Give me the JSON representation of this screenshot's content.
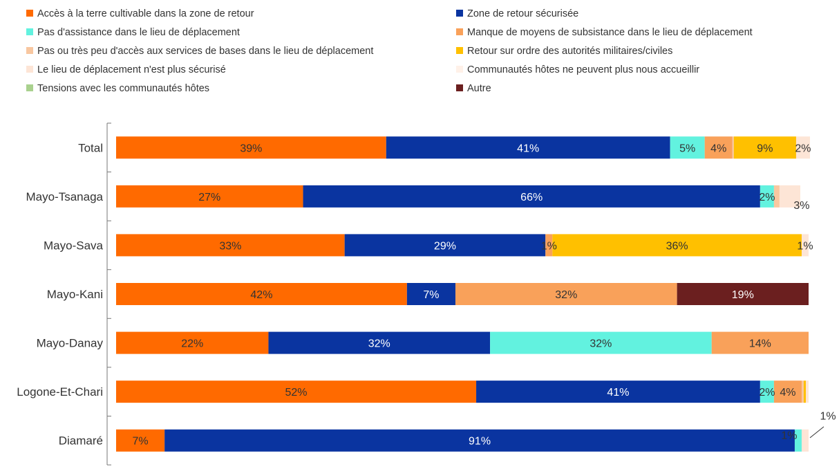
{
  "chart_data": {
    "type": "bar",
    "orientation": "horizontal",
    "stacked": true,
    "xlim": [
      0,
      100
    ],
    "grid": false,
    "legend_placement": "top",
    "categories": [
      "Total",
      "Mayo-Tsanaga",
      "Mayo-Sava",
      "Mayo-Kani",
      "Mayo-Danay",
      "Logone-Et-Chari",
      "Diamaré"
    ],
    "series": [
      {
        "name": "Accès à la terre cultivable dans la zone de retour",
        "color": "#FF6A00",
        "values": [
          39,
          27,
          33,
          42,
          22,
          52,
          7
        ],
        "labels": [
          "39%",
          "27%",
          "33%",
          "42%",
          "22%",
          "52%",
          "7%"
        ]
      },
      {
        "name": "Zone de retour sécurisée",
        "color": "#0A34A0",
        "values": [
          41,
          66,
          29,
          7,
          32,
          41,
          91
        ],
        "labels": [
          "41%",
          "66%",
          "29%",
          "7%",
          "32%",
          "41%",
          "91%"
        ]
      },
      {
        "name": "Pas d'assistance dans le lieu de déplacement",
        "color": "#62F2DF",
        "values": [
          5,
          2,
          0,
          0,
          32,
          2,
          1
        ],
        "labels": [
          "5%",
          "2%",
          "",
          "",
          "32%",
          "2%",
          "1%"
        ]
      },
      {
        "name": "Manque de moyens de subsistance dans le lieu de déplacement",
        "color": "#F9A15A",
        "values": [
          4,
          0,
          1,
          32,
          14,
          4,
          0
        ],
        "labels": [
          "4%",
          "",
          "1%",
          "32%",
          "14%",
          "4%",
          ""
        ]
      },
      {
        "name": "Pas ou très peu d'accès aux services de bases dans le lieu de déplacement",
        "color": "#F8C7A0",
        "values": [
          0.2,
          0.8,
          0,
          0,
          0,
          0.3,
          0
        ],
        "labels": [
          "",
          "",
          "",
          "",
          "",
          "",
          ""
        ]
      },
      {
        "name": "Retour sur ordre des autorités militaires/civiles",
        "color": "#FFC000",
        "values": [
          9,
          0,
          36,
          0,
          0,
          0.3,
          0
        ],
        "labels": [
          "9%",
          "",
          "36%",
          "",
          "",
          "",
          ""
        ]
      },
      {
        "name": "Le lieu de déplacement n'est plus sécurisé",
        "color": "#FDE5D6",
        "values": [
          2,
          3,
          1,
          0,
          0,
          0.4,
          1
        ],
        "labels": [
          "2%",
          "3%",
          "1%",
          "",
          "",
          "",
          "1%"
        ]
      },
      {
        "name": "Communautés hôtes ne peuvent plus nous accueillir",
        "color": "#FFF1E8",
        "values": [
          0,
          0,
          0,
          0,
          0,
          0,
          0
        ],
        "labels": [
          "",
          "",
          "",
          "",
          "",
          "",
          ""
        ]
      },
      {
        "name": "Tensions avec les communautés hôtes",
        "color": "#A9D18E",
        "values": [
          0,
          0,
          0,
          0,
          0,
          0,
          0
        ],
        "labels": [
          "",
          "",
          "",
          "",
          "",
          "",
          ""
        ]
      },
      {
        "name": "Autre",
        "color": "#6B1F1F",
        "values": [
          0,
          0,
          0,
          19,
          0,
          0,
          0
        ],
        "labels": [
          "",
          "",
          "",
          "19%",
          "",
          "",
          ""
        ]
      }
    ]
  }
}
